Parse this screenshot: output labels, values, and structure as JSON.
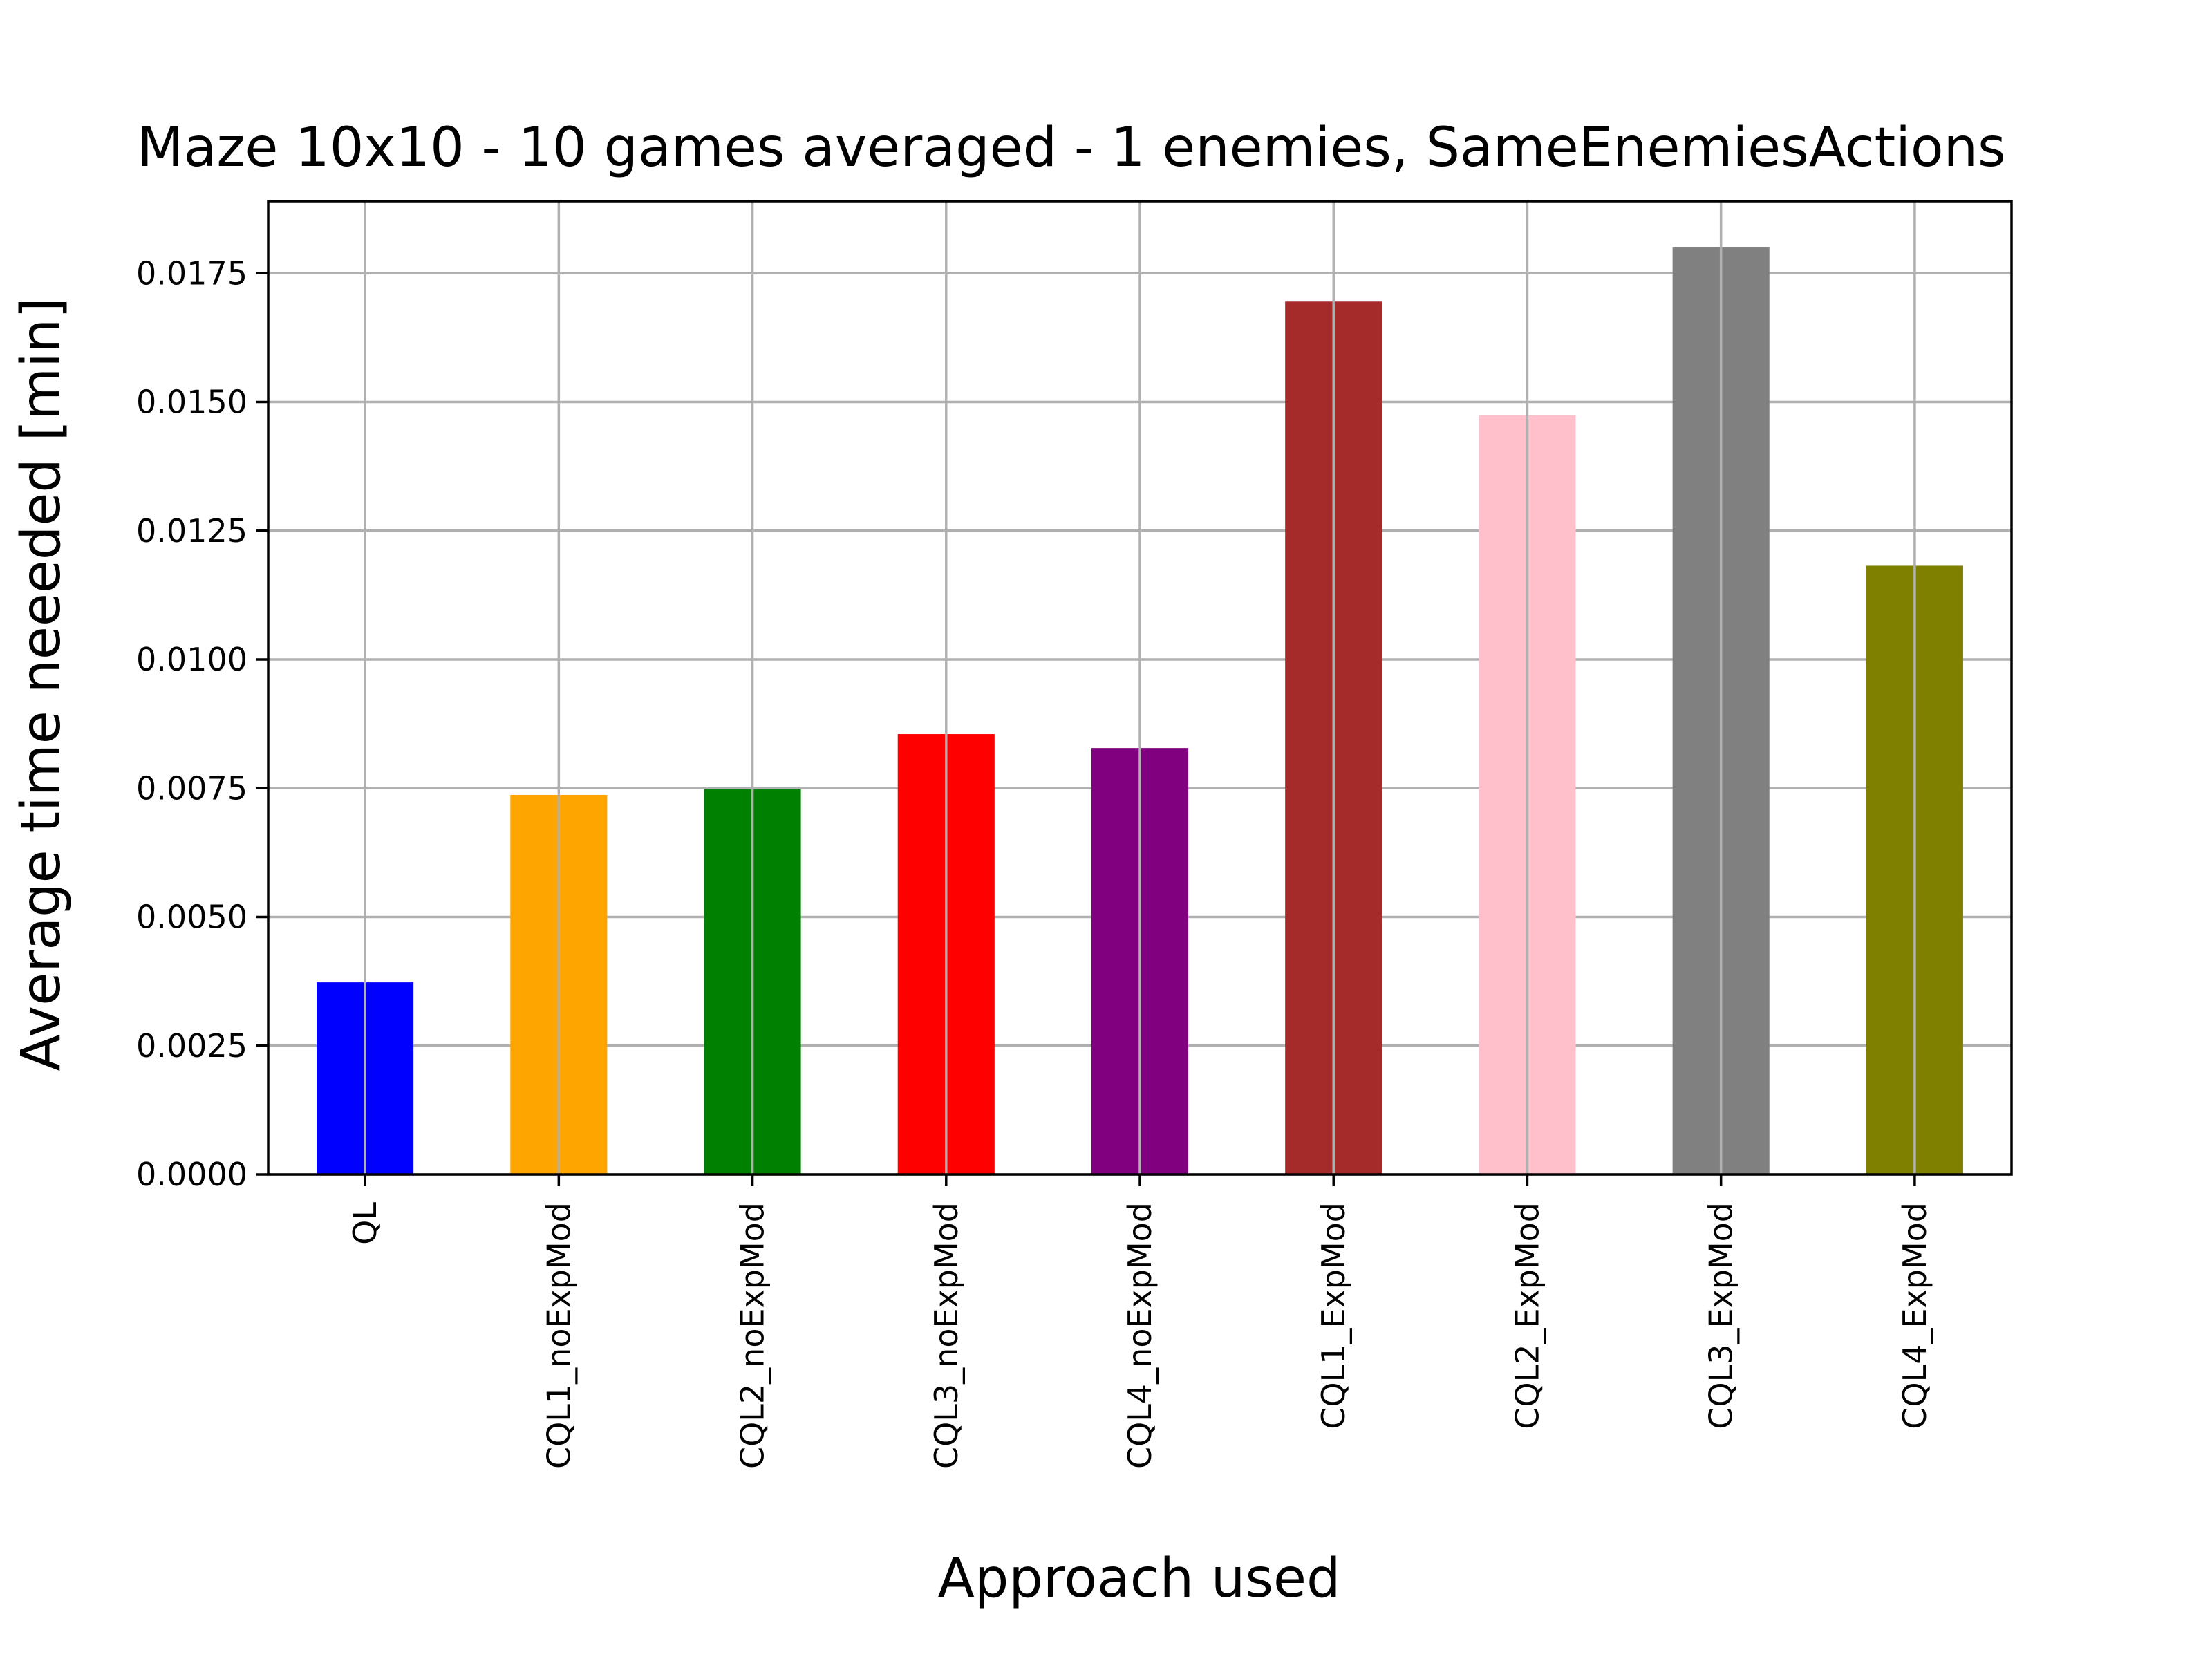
{
  "chart_data": {
    "type": "bar",
    "title": "Maze 10x10 - 10 games averaged - 1 enemies, SameEnemiesActions",
    "xlabel": "Approach used",
    "ylabel": "Average time neeeded [min]",
    "categories": [
      "QL",
      "CQL1_noExpMod",
      "CQL2_noExpMod",
      "CQL3_noExpMod",
      "CQL4_noExpMod",
      "CQL1_ExpMod",
      "CQL2_ExpMod",
      "CQL3_ExpMod",
      "CQL4_ExpMod"
    ],
    "values": [
      0.00373,
      0.00737,
      0.00748,
      0.00855,
      0.00828,
      0.01695,
      0.01474,
      0.018,
      0.01182
    ],
    "colors": [
      "#0000ff",
      "#ffa500",
      "#008000",
      "#ff0000",
      "#800080",
      "#a52a2a",
      "#ffc0cb",
      "#808080",
      "#808000"
    ],
    "ylim": [
      0,
      0.0189
    ],
    "yticks": [
      0.0,
      0.0025,
      0.005,
      0.0075,
      0.01,
      0.0125,
      0.015,
      0.0175
    ],
    "ytick_labels": [
      "0.0000",
      "0.0025",
      "0.0050",
      "0.0075",
      "0.0100",
      "0.0125",
      "0.0150",
      "0.0175"
    ],
    "grid": true,
    "legend": "none"
  }
}
